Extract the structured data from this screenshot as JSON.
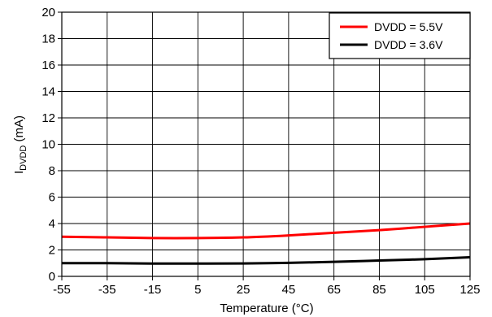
{
  "chart_data": {
    "type": "line",
    "xlabel": "Temperature (°C)",
    "ylabel": {
      "main": "I",
      "sub": "DVDD",
      "unit": " (mA)"
    },
    "xlim": [
      -55,
      125
    ],
    "ylim": [
      0,
      20
    ],
    "x_ticks": [
      -55,
      -35,
      -15,
      5,
      25,
      45,
      65,
      85,
      105,
      125
    ],
    "y_ticks": [
      0,
      2,
      4,
      6,
      8,
      10,
      12,
      14,
      16,
      18,
      20
    ],
    "grid": true,
    "legend_position": "top-right",
    "series": [
      {
        "name": "DVDD = 5.5V",
        "color": "#ff0000",
        "x": [
          -55,
          -35,
          -15,
          5,
          25,
          45,
          65,
          85,
          105,
          125
        ],
        "y": [
          3.0,
          2.95,
          2.9,
          2.9,
          2.95,
          3.1,
          3.3,
          3.5,
          3.75,
          4.0
        ]
      },
      {
        "name": "DVDD = 3.6V",
        "color": "#000000",
        "x": [
          -55,
          -35,
          -15,
          5,
          25,
          45,
          65,
          85,
          105,
          125
        ],
        "y": [
          1.0,
          1.0,
          0.97,
          0.97,
          0.98,
          1.02,
          1.1,
          1.2,
          1.3,
          1.45
        ]
      }
    ]
  }
}
